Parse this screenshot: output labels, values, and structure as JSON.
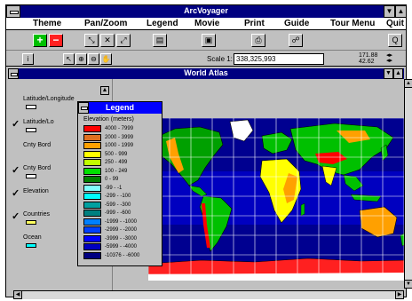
{
  "app": {
    "title": "ArcVoyager"
  },
  "menubar": {
    "items": [
      "Theme",
      "Pan/Zoom",
      "Legend",
      "Movie",
      "Print",
      "Guide",
      "Tour Menu",
      "Quit"
    ]
  },
  "toolbar": {
    "add_symbol": "+",
    "remove_symbol": "−"
  },
  "toolbar2": {
    "scale_label": "Scale 1:",
    "scale_value": "338,325,993",
    "coord_x": "171.88",
    "coord_y": "42.62"
  },
  "map_window": {
    "title": "World Atlas"
  },
  "layers": [
    {
      "name": "Latitude/Longitude",
      "checked": false,
      "swatch": "#ffffff"
    },
    {
      "name": "Latitude/Lo",
      "checked": true,
      "swatch": "#ffffff"
    },
    {
      "name": "Cnty Bord",
      "checked": false,
      "swatch": ""
    },
    {
      "name": "Cnty Bord",
      "checked": true,
      "swatch": "#ffffff"
    },
    {
      "name": "Elevation",
      "checked": true,
      "swatch": ""
    },
    {
      "name": "Countries",
      "checked": true,
      "swatch": "#ffff60"
    },
    {
      "name": "Ocean",
      "checked": false,
      "swatch": "#00ffff"
    }
  ],
  "legend": {
    "title": "Legend",
    "subtitle": "Elevation (meters)",
    "items": [
      {
        "label": "4000 - 7999",
        "color": "#ff0000"
      },
      {
        "label": "2000 - 3999",
        "color": "#e07020"
      },
      {
        "label": "1000 - 1999",
        "color": "#ffa000"
      },
      {
        "label": "500 - 999",
        "color": "#ffff00"
      },
      {
        "label": "250 - 499",
        "color": "#c0ff00"
      },
      {
        "label": "100 - 249",
        "color": "#00e000"
      },
      {
        "label": "0 - 99",
        "color": "#008000"
      },
      {
        "label": "-99 - -1",
        "color": "#80ffff"
      },
      {
        "label": "-299 - -100",
        "color": "#00ffff"
      },
      {
        "label": "-599 - -300",
        "color": "#00a0a0"
      },
      {
        "label": "-999 - -600",
        "color": "#008080"
      },
      {
        "label": "-1999 - -1000",
        "color": "#0080ff"
      },
      {
        "label": "-2999 - -2000",
        "color": "#0040ff"
      },
      {
        "label": "-3999 - -3000",
        "color": "#0000ff"
      },
      {
        "label": "-5999 - -4000",
        "color": "#0000c0"
      },
      {
        "label": "-10376 - -6000",
        "color": "#000080"
      }
    ]
  }
}
